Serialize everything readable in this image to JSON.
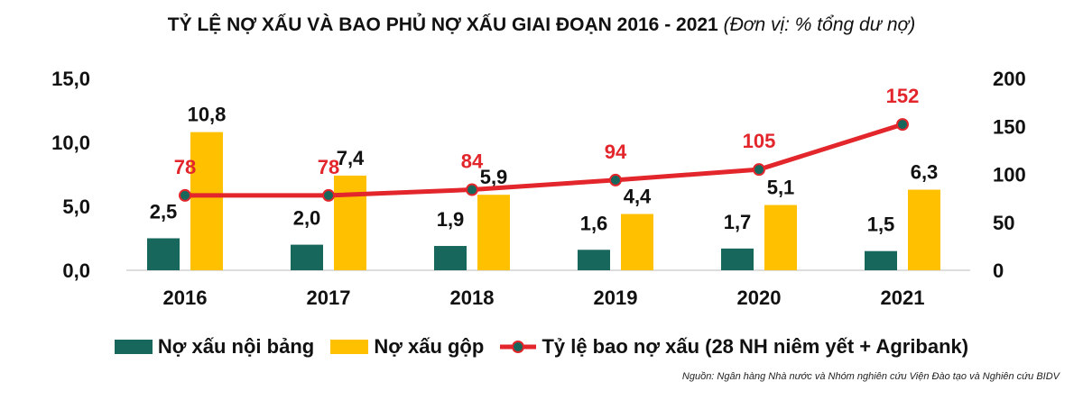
{
  "chart_data": {
    "type": "bar+line",
    "title": "TỶ LỆ NỢ XẤU VÀ BAO PHỦ NỢ XẤU GIAI ĐOẠN 2016 - 2021",
    "subtitle": "(Đơn vị: % tổng dư nợ)",
    "categories": [
      "2016",
      "2017",
      "2018",
      "2019",
      "2020",
      "2021"
    ],
    "series": [
      {
        "name": "Nợ xấu nội bảng",
        "type": "bar",
        "axis": "left",
        "color": "#17675c",
        "values": [
          2.5,
          2.0,
          1.9,
          1.6,
          1.7,
          1.5
        ],
        "labels": [
          "2,5",
          "2,0",
          "1,9",
          "1,6",
          "1,7",
          "1,5"
        ]
      },
      {
        "name": "Nợ xấu gộp",
        "type": "bar",
        "axis": "left",
        "color": "#ffc000",
        "values": [
          10.8,
          7.4,
          5.9,
          4.4,
          5.1,
          6.3
        ],
        "labels": [
          "10,8",
          "7,4",
          "5,9",
          "4,4",
          "5,1",
          "6,3"
        ]
      },
      {
        "name": "Tỷ lệ bao nợ xấu (28 NH niêm yết + Agribank)",
        "type": "line",
        "axis": "right",
        "color": "#e2262b",
        "marker_color": "#17675c",
        "values": [
          78,
          78,
          84,
          94,
          105,
          152
        ],
        "labels": [
          "78",
          "78",
          "84",
          "94",
          "105",
          "152"
        ]
      }
    ],
    "left_axis": {
      "ylim": [
        0,
        15
      ],
      "ticks": [
        "0,0",
        "5,0",
        "10,0",
        "15,0"
      ]
    },
    "right_axis": {
      "ylim": [
        0,
        200
      ],
      "ticks": [
        "0",
        "50",
        "100",
        "150",
        "200"
      ]
    },
    "legend_position": "bottom",
    "source": "Nguồn: Ngân hàng Nhà nước và Nhóm nghiên cứu Viện Đào tạo và Nghiên cứu BIDV"
  }
}
